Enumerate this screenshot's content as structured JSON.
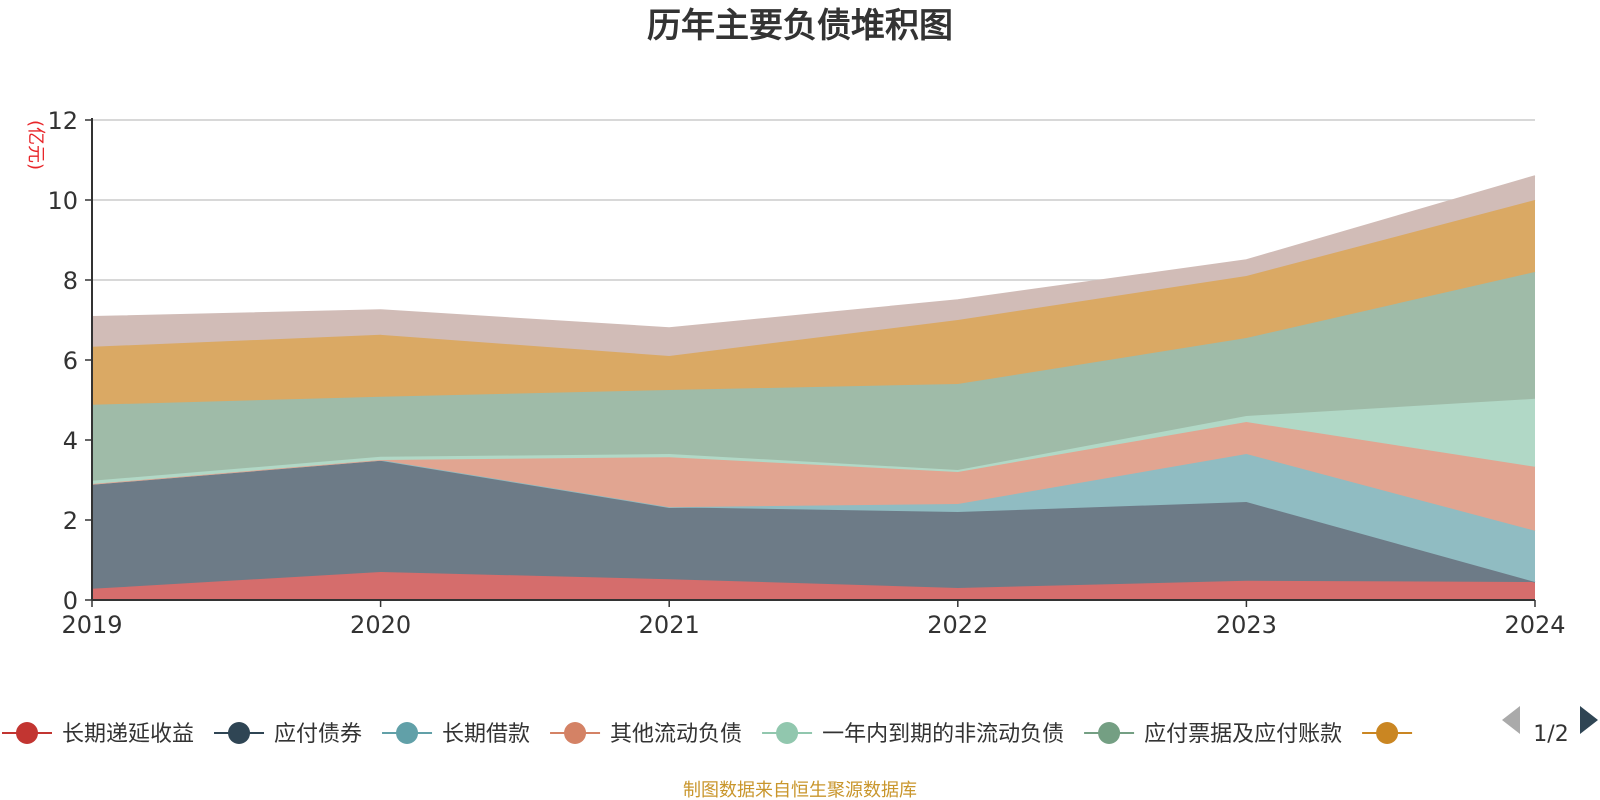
{
  "chart_data": {
    "type": "area",
    "stacked": true,
    "title": "历年主要负债堆积图",
    "ylabel": "(亿元)",
    "x": [
      "2019",
      "2020",
      "2021",
      "2022",
      "2023",
      "2024"
    ],
    "ylim": [
      0,
      12
    ],
    "yticks": [
      "0",
      "2",
      "4",
      "6",
      "8",
      "10",
      "12"
    ],
    "grid": true,
    "legend_position": "bottom",
    "series": [
      {
        "name": "长期递延收益",
        "color": "#c23531",
        "fill": "#d56d6c",
        "values": [
          0.28,
          0.7,
          0.52,
          0.3,
          0.48,
          0.45
        ]
      },
      {
        "name": "应付债券",
        "color": "#2f4554",
        "fill": "#6d7b87",
        "values": [
          2.62,
          2.8,
          1.8,
          1.9,
          1.97,
          0.0
        ]
      },
      {
        "name": "长期借款",
        "color": "#61a0a8",
        "fill": "#90bcc2",
        "values": [
          0.0,
          0.0,
          0.0,
          0.2,
          1.2,
          1.28
        ]
      },
      {
        "name": "其他流动负债",
        "color": "#d48265",
        "fill": "#e1a591",
        "values": [
          0.0,
          0.0,
          1.25,
          0.8,
          0.8,
          1.6
        ]
      },
      {
        "name": "一年内到期的非流动负债",
        "color": "#91c7ae",
        "fill": "#b1d8c6",
        "values": [
          0.08,
          0.08,
          0.08,
          0.05,
          0.15,
          1.7
        ]
      },
      {
        "name": "应付票据及应付账款",
        "color": "#749f83",
        "fill": "#9fbba8",
        "values": [
          1.9,
          1.5,
          1.6,
          2.15,
          1.95,
          3.17
        ]
      },
      {
        "name": "",
        "color": "#ca8622",
        "fill": "#daa964",
        "values": [
          1.45,
          1.55,
          0.85,
          1.6,
          1.55,
          1.8
        ]
      },
      {
        "name": "",
        "color": "#bda29a",
        "fill": "#d1bcb7",
        "values": [
          0.75,
          0.62,
          0.7,
          0.5,
          0.4,
          0.6
        ]
      }
    ]
  },
  "legend": {
    "visible_count": 7,
    "page_indicator": "1/2",
    "colors": [
      "#c23531",
      "#2f4554",
      "#61a0a8",
      "#d48265",
      "#91c7ae",
      "#749f83",
      "#ca8622"
    ]
  },
  "footer": {
    "source": "制图数据来自恒生聚源数据库"
  }
}
